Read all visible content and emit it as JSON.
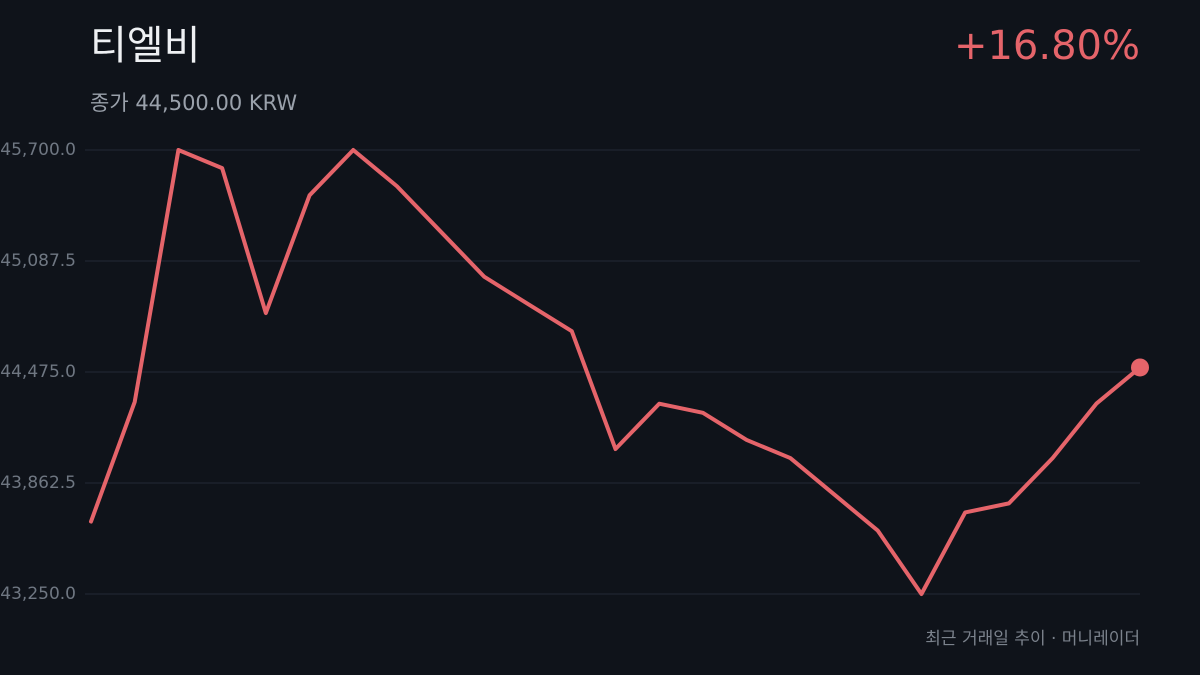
{
  "chart_data": {
    "type": "line",
    "title": "티엘비",
    "subtitle": "종가 44,500.00 KRW",
    "change": "+16.80%",
    "footer": "최근 거래일 추이 · 머니레이더",
    "color": "#e5646a",
    "grid": true,
    "values": [
      43650,
      44310,
      45700,
      45600,
      44800,
      45450,
      45700,
      45500,
      45250,
      45000,
      44850,
      44700,
      44050,
      44300,
      44250,
      44100,
      44000,
      43800,
      43600,
      43250,
      43700,
      43750,
      44000,
      44300,
      44500
    ],
    "ylim": [
      43250,
      45700
    ],
    "yticks": [
      {
        "value": 43250,
        "label": "43,250.0"
      },
      {
        "value": 43862.5,
        "label": "43,862.5"
      },
      {
        "value": 44475,
        "label": "44,475.0"
      },
      {
        "value": 45087.5,
        "label": "45,087.5"
      },
      {
        "value": 45700,
        "label": "45,700.0"
      }
    ]
  }
}
